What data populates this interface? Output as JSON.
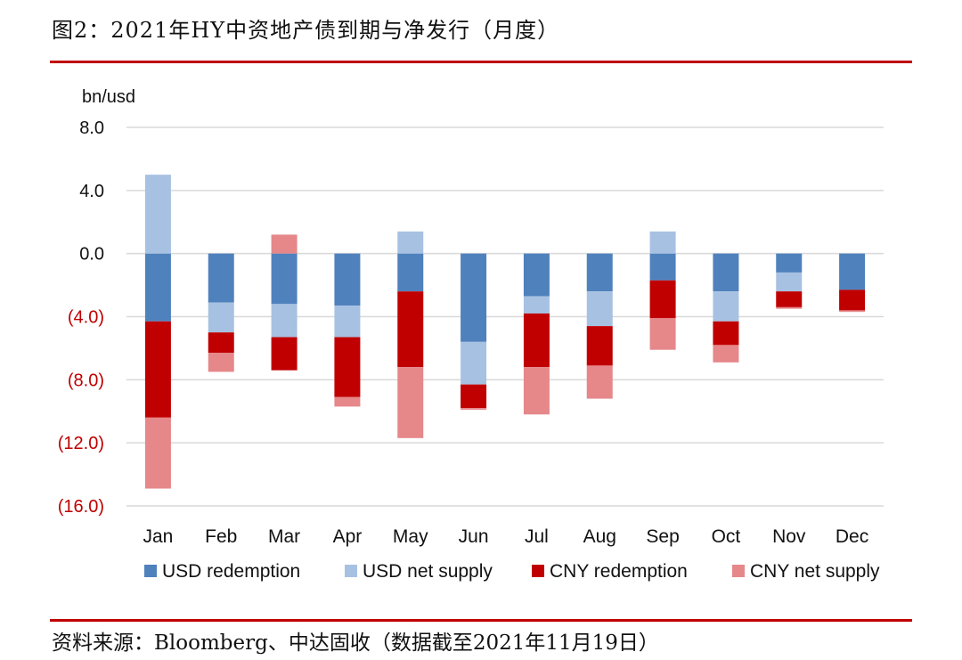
{
  "figure": {
    "title": "图2：2021年HY中资地产债到期与净发行（月度）",
    "source": "资料来源：Bloomberg、中达固收（数据截至2021年11月19日）"
  },
  "chart_data": {
    "type": "bar",
    "stacked": true,
    "unit_label": "bn/usd",
    "ylim": [
      -16,
      8
    ],
    "yticks": [
      {
        "value": 8,
        "label": "8.0",
        "color": "#111111"
      },
      {
        "value": 4,
        "label": "4.0",
        "color": "#111111"
      },
      {
        "value": 0,
        "label": "0.0",
        "color": "#111111"
      },
      {
        "value": -4,
        "label": "(4.0)",
        "color": "#c00000"
      },
      {
        "value": -8,
        "label": "(8.0)",
        "color": "#c00000"
      },
      {
        "value": -12,
        "label": "(12.0)",
        "color": "#c00000"
      },
      {
        "value": -16,
        "label": "(16.0)",
        "color": "#c00000"
      }
    ],
    "grid": true,
    "legend_position": "bottom",
    "categories": [
      "Jan",
      "Feb",
      "Mar",
      "Apr",
      "May",
      "Jun",
      "Jul",
      "Aug",
      "Sep",
      "Oct",
      "Nov",
      "Dec"
    ],
    "series": [
      {
        "name": "USD redemption",
        "color": "#4f81bd",
        "values": [
          -4.3,
          -3.1,
          -3.2,
          -3.3,
          -2.4,
          -5.6,
          -2.7,
          -2.4,
          -1.7,
          -2.4,
          -1.2,
          -2.3
        ]
      },
      {
        "name": "USD net supply",
        "color": "#a7c1e2",
        "values": [
          5.0,
          -1.9,
          -2.1,
          -2.0,
          1.4,
          -2.7,
          -1.1,
          -2.2,
          1.4,
          -1.9,
          -1.2,
          0.0
        ]
      },
      {
        "name": "CNY redemption",
        "color": "#c00000",
        "values": [
          -6.1,
          -1.3,
          -2.1,
          -3.8,
          -4.8,
          -1.5,
          -3.4,
          -2.5,
          -2.4,
          -1.5,
          -1.0,
          -1.3
        ]
      },
      {
        "name": "CNY net supply",
        "color": "#e6878a",
        "values": [
          -4.5,
          -1.2,
          1.2,
          -0.6,
          -4.5,
          -0.1,
          -3.0,
          -2.1,
          -2.0,
          -1.1,
          -0.1,
          -0.1
        ]
      }
    ]
  }
}
